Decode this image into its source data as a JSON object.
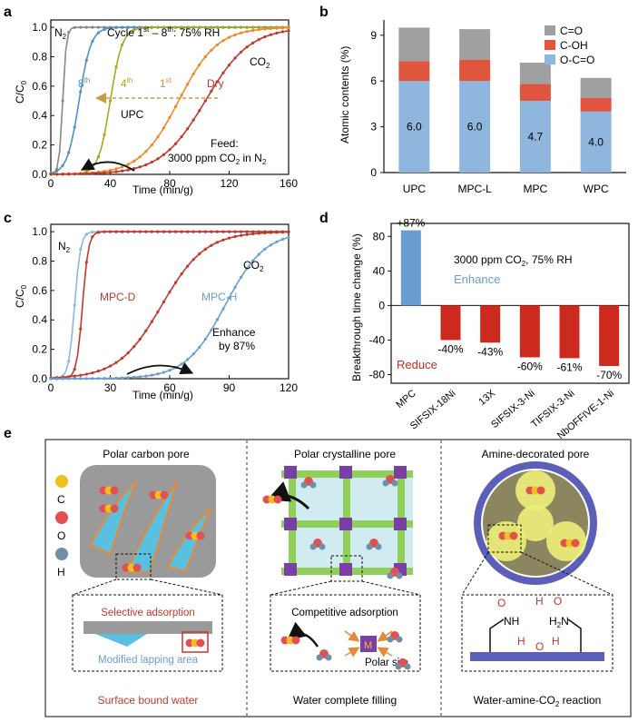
{
  "colors": {
    "navy": "#1f2a44",
    "gray": "#a0a0a0",
    "red": "#e0553d",
    "blue": "#8fb7de",
    "blueBar": "#6a9dd0",
    "redBar": "#cc2a1e",
    "dry": "#c0392b",
    "orange": "#f08a24",
    "olive": "#a8a81e",
    "teal": "#4f8fc6",
    "tan": "#c89a4a"
  },
  "panel_a": {
    "letter": "a",
    "chart_data": {
      "type": "line",
      "xlabel": "Time (min/g)",
      "ylabel": "C/C0",
      "xlim": [
        0,
        160
      ],
      "ylim": [
        0,
        1.05
      ],
      "xticks": [
        "0",
        "40",
        "80",
        "120",
        "160"
      ],
      "yticks": [
        "0.0",
        "0.2",
        "0.4",
        "0.6",
        "0.8",
        "1.0"
      ],
      "title": "Cycle 1st – 8th: 75% RH",
      "series": [
        {
          "name": "N2",
          "x_mid": 8,
          "width": 1.2
        },
        {
          "name": "8th",
          "x_mid": 19,
          "width": 4
        },
        {
          "name": "4th",
          "x_mid": 40,
          "width": 4
        },
        {
          "name": "1st",
          "x_mid": 86,
          "width": 13
        },
        {
          "name": "Dry",
          "x_mid": 104,
          "width": 15
        }
      ]
    },
    "labels": {
      "n2": "N2",
      "co2": "CO2",
      "cycle8": "8th",
      "cycle4": "4th",
      "cycle1": "1st",
      "dry": "Dry",
      "upc": "UPC",
      "feed1": "Feed:",
      "feed2": "3000 ppm CO2 in N2"
    }
  },
  "panel_b": {
    "letter": "b",
    "chart_data": {
      "type": "bar",
      "categories": [
        "UPC",
        "MPC-L",
        "MPC",
        "WPC"
      ],
      "ylabel": "Atomic contents (%)",
      "ylim": [
        0,
        10
      ],
      "yticks": [
        "0",
        "3",
        "6",
        "9"
      ],
      "series": [
        {
          "name": "O-C=O",
          "values": [
            6.0,
            6.0,
            4.7,
            4.0
          ]
        },
        {
          "name": "C-OH",
          "values": [
            1.3,
            1.4,
            1.1,
            0.9
          ]
        },
        {
          "name": "C=O",
          "values": [
            2.2,
            2.0,
            1.4,
            1.3
          ]
        }
      ],
      "data_labels": [
        "6.0",
        "6.0",
        "4.7",
        "4.0"
      ],
      "legend": [
        "C=O",
        "C-OH",
        "O-C=O"
      ]
    }
  },
  "panel_c": {
    "letter": "c",
    "chart_data": {
      "type": "line",
      "xlabel": "Time (min/g)",
      "ylabel": "C/C0",
      "xlim": [
        0,
        120
      ],
      "ylim": [
        0,
        1.05
      ],
      "xticks": [
        "0",
        "30",
        "60",
        "90",
        "120"
      ],
      "yticks": [
        "0.0",
        "0.2",
        "0.4",
        "0.6",
        "0.8",
        "1.0"
      ],
      "series": [
        {
          "name": "N2 (MPC-H)",
          "x_mid": 12
        },
        {
          "name": "N2 (MPC-D)",
          "x_mid": 16
        },
        {
          "name": "MPC-D",
          "x_mid": 56,
          "width": 11
        },
        {
          "name": "MPC-H",
          "x_mid": 88,
          "width": 10
        }
      ]
    },
    "labels": {
      "n2": "N2",
      "co2": "CO2",
      "mpcd": "MPC-D",
      "mpch": "MPC-H",
      "enh1": "Enhance",
      "enh2": "by 87%"
    }
  },
  "panel_d": {
    "letter": "d",
    "chart_data": {
      "type": "bar",
      "categories": [
        "MPC",
        "SIFSIX-18Ni",
        "13X",
        "SIFSIX-3-Ni",
        "TIFSIX-3-Ni",
        "NbOFFIVE-1-Ni"
      ],
      "values": [
        87,
        -40,
        -43,
        -60,
        -61,
        -70
      ],
      "data_labels": [
        "+87%",
        "-40%",
        "-43%",
        "-60%",
        "-61%",
        "-70%"
      ],
      "ylabel": "Breakthrough time change (%)",
      "ylim": [
        -90,
        95
      ],
      "yticks": [
        "80",
        "40",
        "0",
        "-40",
        "-80"
      ],
      "annotation": "3000 ppm CO2, 75% RH",
      "enhance": "Enhance",
      "reduce": "Reduce"
    }
  },
  "panel_e": {
    "letter": "e",
    "col1": {
      "title": "Polar carbon pore",
      "box1": "Selective adsorption",
      "box2": "Modified lapping area",
      "caption": "Surface bound water"
    },
    "col2": {
      "title": "Polar crystalline pore",
      "box1": "Competitive adsorption",
      "metal": "M",
      "site": "Polar site",
      "caption": "Water complete filling"
    },
    "col3": {
      "title": "Amine-decorated pore",
      "caption": "Water-amine-CO2 reaction"
    },
    "legend": [
      "C",
      "O",
      "H"
    ],
    "chem": {
      "nh": "NH",
      "h": "H",
      "o": "O",
      "h2n": "H2N"
    }
  }
}
